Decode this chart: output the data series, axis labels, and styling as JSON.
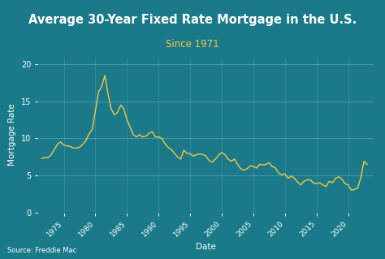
{
  "title": "Average 30-Year Fixed Rate Mortgage in the U.S.",
  "subtitle": "Since 1971",
  "xlabel": "Date",
  "ylabel": "Mortgage Rate",
  "source": "Source: Freddie Mac",
  "title_bg_color": "#40BCD8",
  "plot_bg_color": "#1A7A8A",
  "title_color": "#FFFFFF",
  "subtitle_color": "#F5C842",
  "line_color": "#F5C842",
  "axis_label_color": "#FFFFFF",
  "tick_label_color": "#FFFFFF",
  "grid_color": "#FFFFFF",
  "source_color": "#FFFFFF",
  "ylim": [
    0,
    21
  ],
  "yticks": [
    0,
    5,
    10,
    15,
    20
  ],
  "xtick_labels": [
    "1975",
    "1980",
    "1985",
    "1990",
    "1995",
    "2000",
    "2005",
    "2010",
    "2015",
    "2020"
  ],
  "years": [
    1971.5,
    1972.0,
    1972.5,
    1973.0,
    1973.5,
    1974.0,
    1974.5,
    1975.0,
    1975.5,
    1976.0,
    1976.5,
    1977.0,
    1977.5,
    1978.0,
    1978.5,
    1979.0,
    1979.5,
    1980.0,
    1980.5,
    1981.0,
    1981.5,
    1982.0,
    1982.5,
    1983.0,
    1983.5,
    1984.0,
    1984.5,
    1985.0,
    1985.5,
    1986.0,
    1986.5,
    1987.0,
    1987.5,
    1988.0,
    1988.5,
    1989.0,
    1989.5,
    1990.0,
    1990.5,
    1991.0,
    1991.5,
    1992.0,
    1992.5,
    1993.0,
    1993.5,
    1994.0,
    1994.5,
    1995.0,
    1995.5,
    1996.0,
    1996.5,
    1997.0,
    1997.5,
    1998.0,
    1998.5,
    1999.0,
    1999.5,
    2000.0,
    2000.5,
    2001.0,
    2001.5,
    2002.0,
    2002.5,
    2003.0,
    2003.5,
    2004.0,
    2004.5,
    2005.0,
    2005.5,
    2006.0,
    2006.5,
    2007.0,
    2007.5,
    2008.0,
    2008.5,
    2009.0,
    2009.5,
    2010.0,
    2010.5,
    2011.0,
    2011.5,
    2012.0,
    2012.5,
    2013.0,
    2013.5,
    2014.0,
    2014.5,
    2015.0,
    2015.5,
    2016.0,
    2016.5,
    2017.0,
    2017.5,
    2018.0,
    2018.5,
    2019.0,
    2019.5,
    2020.0,
    2020.5,
    2021.0,
    2021.5,
    2022.0,
    2022.5,
    2023.0
  ],
  "rates": [
    7.3,
    7.4,
    7.4,
    7.8,
    8.5,
    9.2,
    9.5,
    9.1,
    9.0,
    8.9,
    8.7,
    8.7,
    8.8,
    9.2,
    9.7,
    10.6,
    11.2,
    13.7,
    16.3,
    17.0,
    18.5,
    16.0,
    14.0,
    13.2,
    13.5,
    14.5,
    14.0,
    12.5,
    11.5,
    10.5,
    10.2,
    10.5,
    10.2,
    10.3,
    10.7,
    10.9,
    10.2,
    10.2,
    10.0,
    9.3,
    8.8,
    8.5,
    8.0,
    7.5,
    7.2,
    8.4,
    8.0,
    7.9,
    7.6,
    7.8,
    7.9,
    7.8,
    7.6,
    7.0,
    6.8,
    7.2,
    7.7,
    8.1,
    7.8,
    7.2,
    6.9,
    7.2,
    6.5,
    5.9,
    5.7,
    5.9,
    6.3,
    6.2,
    6.0,
    6.5,
    6.4,
    6.5,
    6.7,
    6.2,
    6.0,
    5.3,
    5.1,
    5.2,
    4.6,
    4.9,
    4.6,
    4.1,
    3.7,
    4.2,
    4.4,
    4.4,
    4.0,
    3.9,
    4.0,
    3.7,
    3.5,
    4.2,
    4.0,
    4.6,
    4.8,
    4.5,
    3.9,
    3.7,
    3.0,
    3.1,
    3.3,
    4.7,
    6.9,
    6.5
  ]
}
